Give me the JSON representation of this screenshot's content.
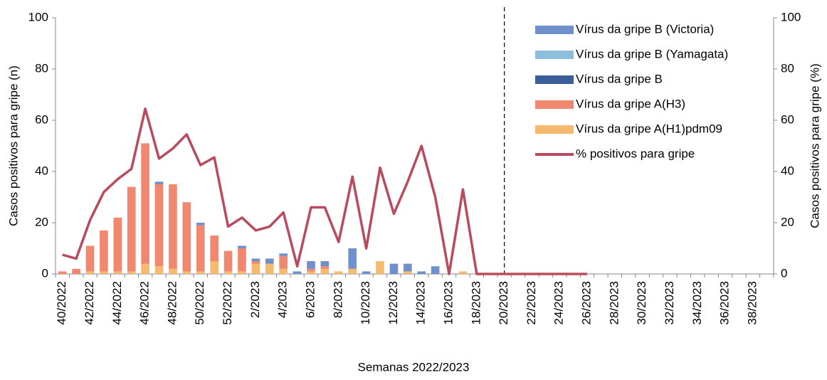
{
  "chart_data": {
    "type": "bar",
    "x_label": "Semanas 2022/2023",
    "y_label": "Casos positivos para gripe (n)",
    "y2_label": "Casos positivos para gripe (%)",
    "categories": [
      "40/2022",
      null,
      "42/2022",
      null,
      "44/2022",
      null,
      "46/2022",
      null,
      "48/2022",
      null,
      "50/2022",
      null,
      "52/2022",
      null,
      "2/2023",
      null,
      "4/2023",
      null,
      "6/2023",
      null,
      "8/2023",
      null,
      "10/2023",
      null,
      "12/2023",
      null,
      "14/2023",
      null,
      "16/2023",
      null,
      "18/2023",
      null,
      "20/2023",
      null,
      "22/2023",
      null,
      "24/2023",
      null,
      "26/2023",
      null,
      "28/2023",
      null,
      "30/2023",
      null,
      "32/2023",
      null,
      "34/2023",
      null,
      "36/2023",
      null,
      "38/2023",
      null
    ],
    "ylim": [
      0,
      100
    ],
    "yticks": [
      0,
      20,
      40,
      60,
      80,
      100
    ],
    "y2lim": [
      0,
      100
    ],
    "y2ticks": [
      0,
      20,
      40,
      60,
      80,
      100
    ],
    "stacked": true,
    "legend": "top-right",
    "series": [
      {
        "name": "Vírus da gripe B (Victoria)",
        "color": "#6f90ca",
        "values": [
          0,
          0,
          0,
          0,
          0,
          0,
          0,
          1,
          0,
          0,
          1,
          0,
          0,
          1,
          1,
          2,
          1,
          1,
          3,
          2,
          0,
          8,
          1,
          0,
          4,
          3,
          1,
          3,
          0,
          0,
          0,
          0,
          0,
          0,
          0,
          0,
          0,
          0,
          0,
          null,
          null,
          null,
          null,
          null,
          null,
          null,
          null,
          null,
          null,
          null,
          null,
          null
        ]
      },
      {
        "name": "Vírus da gripe B (Yamagata)",
        "color": "#8dbfdc",
        "values": [
          0,
          0,
          0,
          0,
          0,
          0,
          0,
          0,
          0,
          0,
          0,
          0,
          0,
          0,
          0,
          0,
          0,
          0,
          0,
          0,
          0,
          0,
          0,
          0,
          0,
          0,
          0,
          0,
          0,
          0,
          0,
          0,
          0,
          0,
          0,
          0,
          0,
          0,
          0,
          null,
          null,
          null,
          null,
          null,
          null,
          null,
          null,
          null,
          null,
          null,
          null,
          null
        ]
      },
      {
        "name": "Vírus da gripe B",
        "color": "#3a5e97",
        "values": [
          0,
          0,
          0,
          0,
          0,
          0,
          0,
          0,
          0,
          0,
          0,
          0,
          0,
          0,
          0,
          0,
          0,
          0,
          0,
          0,
          0,
          0,
          0,
          0,
          0,
          0,
          0,
          0,
          0,
          0,
          0,
          0,
          0,
          0,
          0,
          0,
          0,
          0,
          0,
          null,
          null,
          null,
          null,
          null,
          null,
          null,
          null,
          null,
          null,
          null,
          null,
          null
        ]
      },
      {
        "name": "Vírus da gripe A(H3)",
        "color": "#ef886e",
        "values": [
          1,
          2,
          10,
          16,
          21,
          33,
          47,
          32,
          33,
          27,
          18,
          10,
          8,
          9,
          1,
          0,
          5,
          0,
          1,
          1,
          0,
          0,
          0,
          0,
          0,
          0,
          0,
          0,
          0,
          0,
          0,
          0,
          0,
          0,
          0,
          0,
          0,
          0,
          0,
          null,
          null,
          null,
          null,
          null,
          null,
          null,
          null,
          null,
          null,
          null,
          null,
          null
        ]
      },
      {
        "name": "Vírus da gripe A(H1)pdm09",
        "color": "#f5b96f",
        "values": [
          0,
          0,
          1,
          1,
          1,
          1,
          4,
          3,
          2,
          1,
          1,
          5,
          1,
          1,
          4,
          4,
          2,
          0,
          1,
          2,
          1,
          2,
          0,
          5,
          0,
          1,
          0,
          0,
          0,
          1,
          0,
          0,
          0,
          0,
          0,
          0,
          0,
          0,
          0,
          null,
          null,
          null,
          null,
          null,
          null,
          null,
          null,
          null,
          null,
          null,
          null,
          null
        ]
      },
      {
        "name": "% positivos para gripe",
        "type": "line",
        "axis": "y2",
        "color": "#b84b5e",
        "values": [
          7.5,
          6,
          21,
          32,
          37,
          41,
          64.5,
          45,
          49,
          54.5,
          42.5,
          45.5,
          18.5,
          22,
          17,
          18.5,
          24,
          3,
          26,
          26,
          12.5,
          38,
          10,
          41.5,
          23.5,
          36,
          50,
          30,
          0,
          33,
          0,
          0,
          0,
          0,
          0,
          0,
          0,
          0,
          0,
          null,
          null,
          null,
          null,
          null,
          null,
          null,
          null,
          null,
          null,
          null,
          null,
          null
        ]
      }
    ]
  }
}
